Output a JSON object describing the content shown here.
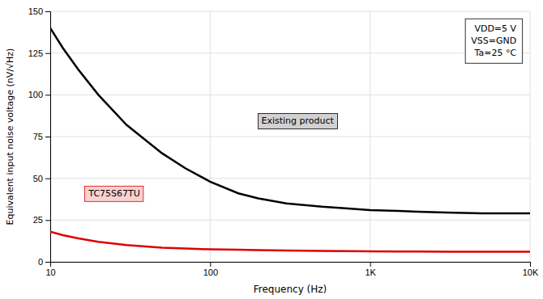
{
  "chart_data": {
    "type": "line",
    "xlabel": "Frequency (Hz)",
    "ylabel": "Equivalent input noise voltage (nV/√Hz)",
    "log": "x",
    "xlim": [
      10,
      10000
    ],
    "ylim": [
      0,
      150
    ],
    "xticks": [
      10,
      100,
      {
        "value": 1000,
        "label": "1K"
      },
      {
        "value": 10000,
        "label": "10K"
      }
    ],
    "yticks": [
      0,
      25,
      50,
      75,
      100,
      125,
      150
    ],
    "grid": true,
    "x": [
      10,
      12,
      15,
      20,
      30,
      50,
      70,
      100,
      150,
      200,
      300,
      500,
      700,
      1000,
      1500,
      2000,
      3000,
      5000,
      7000,
      10000
    ],
    "series": [
      {
        "name": "Existing product",
        "color": "#000000",
        "values": [
          140,
          128,
          115,
          100,
          82,
          65,
          56,
          48,
          41,
          38,
          35,
          33,
          32,
          31,
          30.5,
          30,
          29.5,
          29,
          29,
          29
        ]
      },
      {
        "name": "TC75S67TU",
        "color": "#dd0000",
        "values": [
          18,
          16,
          14,
          12,
          10,
          8.5,
          8,
          7.5,
          7.2,
          7,
          6.8,
          6.5,
          6.4,
          6.3,
          6.2,
          6.2,
          6.1,
          6.0,
          6.0,
          6.0
        ]
      }
    ],
    "annotations": [
      "VDD=5 V",
      "VSS=GND",
      "Ta=25 °C"
    ]
  }
}
